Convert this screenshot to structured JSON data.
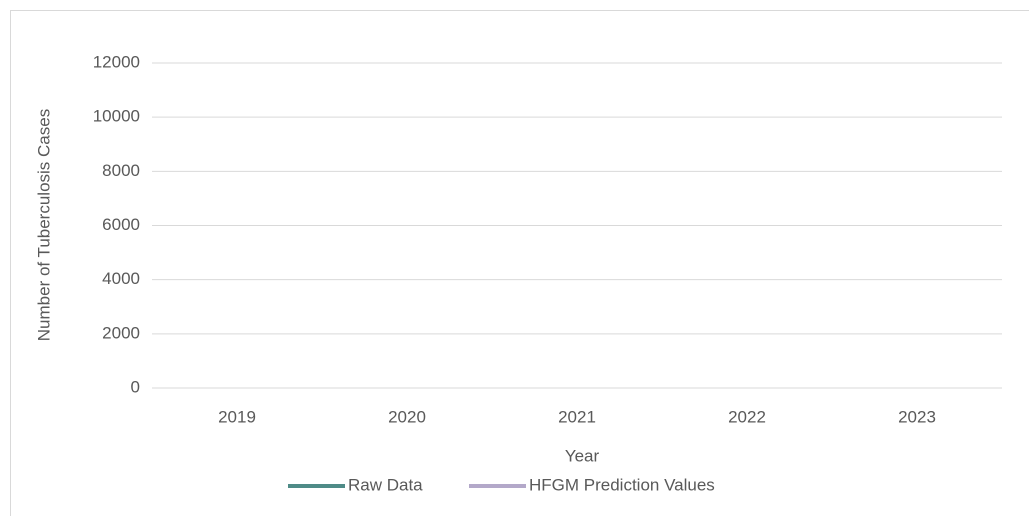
{
  "chart_data": {
    "type": "line",
    "x_label": "Year",
    "y_label": "Number of Tuberculosis Cases",
    "categories": [
      "2019",
      "2020",
      "2021",
      "2022",
      "2023"
    ],
    "series": [
      {
        "name": "Raw Data",
        "color": "#4e8b87",
        "values": [
          null,
          null,
          null,
          null,
          null
        ]
      },
      {
        "name": "HFGM Prediction Values",
        "color": "#b3a8c9",
        "values": [
          null,
          null,
          null,
          null,
          null
        ]
      }
    ],
    "ylim": [
      0,
      12000
    ],
    "yticks": [
      0,
      2000,
      4000,
      6000,
      8000,
      10000,
      12000
    ],
    "grid": true,
    "legend": "bottom"
  }
}
